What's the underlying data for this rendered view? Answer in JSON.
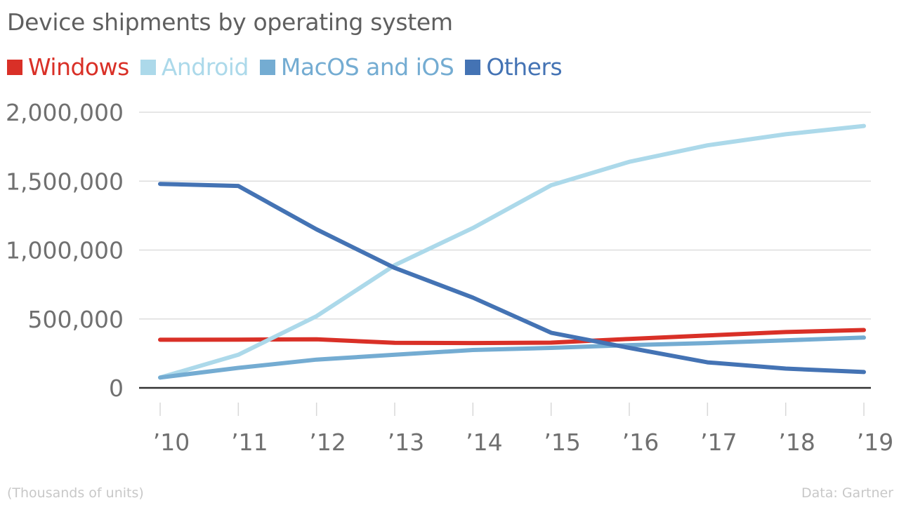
{
  "chart_data": {
    "type": "line",
    "title": "Device shipments by operating system",
    "xlabel": "",
    "ylabel": "",
    "unit_note": "(Thousands of units)",
    "source": "Data: Gartner",
    "categories": [
      "’10",
      "’11",
      "’12",
      "’13",
      "’14",
      "’15",
      "’16",
      "’17",
      "’18",
      "’19"
    ],
    "ylim": [
      0,
      2000000
    ],
    "yticks": [
      0,
      500000,
      1000000,
      1500000,
      2000000
    ],
    "ytick_labels": [
      "0",
      "500,000",
      "1,000,000",
      "1,500,000",
      "2,000,000"
    ],
    "grid": true,
    "legend_position": "top-left",
    "series": [
      {
        "name": "Windows",
        "color": "#d93027",
        "values": [
          349000,
          350000,
          352000,
          327000,
          325000,
          328000,
          355000,
          380000,
          405000,
          420000
        ]
      },
      {
        "name": "Android",
        "color": "#acd9ea",
        "values": [
          75000,
          240000,
          520000,
          890000,
          1160000,
          1470000,
          1640000,
          1760000,
          1840000,
          1900000
        ]
      },
      {
        "name": "MacOS and iOS",
        "color": "#74acd2",
        "values": [
          75000,
          145000,
          205000,
          240000,
          275000,
          290000,
          310000,
          325000,
          345000,
          365000
        ]
      },
      {
        "name": "Others",
        "color": "#4473b4",
        "values": [
          1480000,
          1465000,
          1150000,
          870000,
          655000,
          400000,
          290000,
          185000,
          140000,
          115000
        ]
      }
    ]
  }
}
